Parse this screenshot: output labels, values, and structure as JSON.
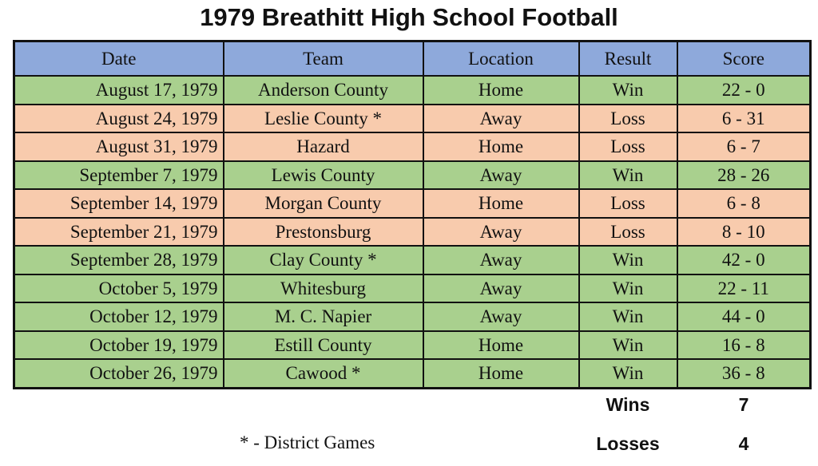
{
  "title": "1979 Breathitt High School Football",
  "columns": [
    "Date",
    "Team",
    "Location",
    "Result",
    "Score"
  ],
  "colors": {
    "header": "#8ea9db",
    "win": "#a9d08e",
    "loss": "#f8cbad"
  },
  "games": [
    {
      "date": "August 17, 1979",
      "team": "Anderson County",
      "location": "Home",
      "result": "Win",
      "score": "22 - 0"
    },
    {
      "date": "August 24, 1979",
      "team": "Leslie County *",
      "location": "Away",
      "result": "Loss",
      "score": "6 - 31"
    },
    {
      "date": "August 31, 1979",
      "team": "Hazard",
      "location": "Home",
      "result": "Loss",
      "score": "6 - 7"
    },
    {
      "date": "September 7, 1979",
      "team": "Lewis County",
      "location": "Away",
      "result": "Win",
      "score": "28 - 26"
    },
    {
      "date": "September 14, 1979",
      "team": "Morgan County",
      "location": "Home",
      "result": "Loss",
      "score": "6 - 8"
    },
    {
      "date": "September 21, 1979",
      "team": "Prestonsburg",
      "location": "Away",
      "result": "Loss",
      "score": "8 - 10"
    },
    {
      "date": "September 28, 1979",
      "team": "Clay County *",
      "location": "Away",
      "result": "Win",
      "score": "42 - 0"
    },
    {
      "date": "October 5, 1979",
      "team": "Whitesburg",
      "location": "Away",
      "result": "Win",
      "score": "22 - 11"
    },
    {
      "date": "October 12, 1979",
      "team": "M. C. Napier",
      "location": "Away",
      "result": "Win",
      "score": "44 - 0"
    },
    {
      "date": "October 19, 1979",
      "team": "Estill County",
      "location": "Home",
      "result": "Win",
      "score": "16 - 8"
    },
    {
      "date": "October 26, 1979",
      "team": "Cawood *",
      "location": "Home",
      "result": "Win",
      "score": "36 - 8"
    }
  ],
  "summary": {
    "wins_label": "Wins",
    "wins_value": "7",
    "losses_label": "Losses",
    "losses_value": "4"
  },
  "footnote": "* - District Games"
}
